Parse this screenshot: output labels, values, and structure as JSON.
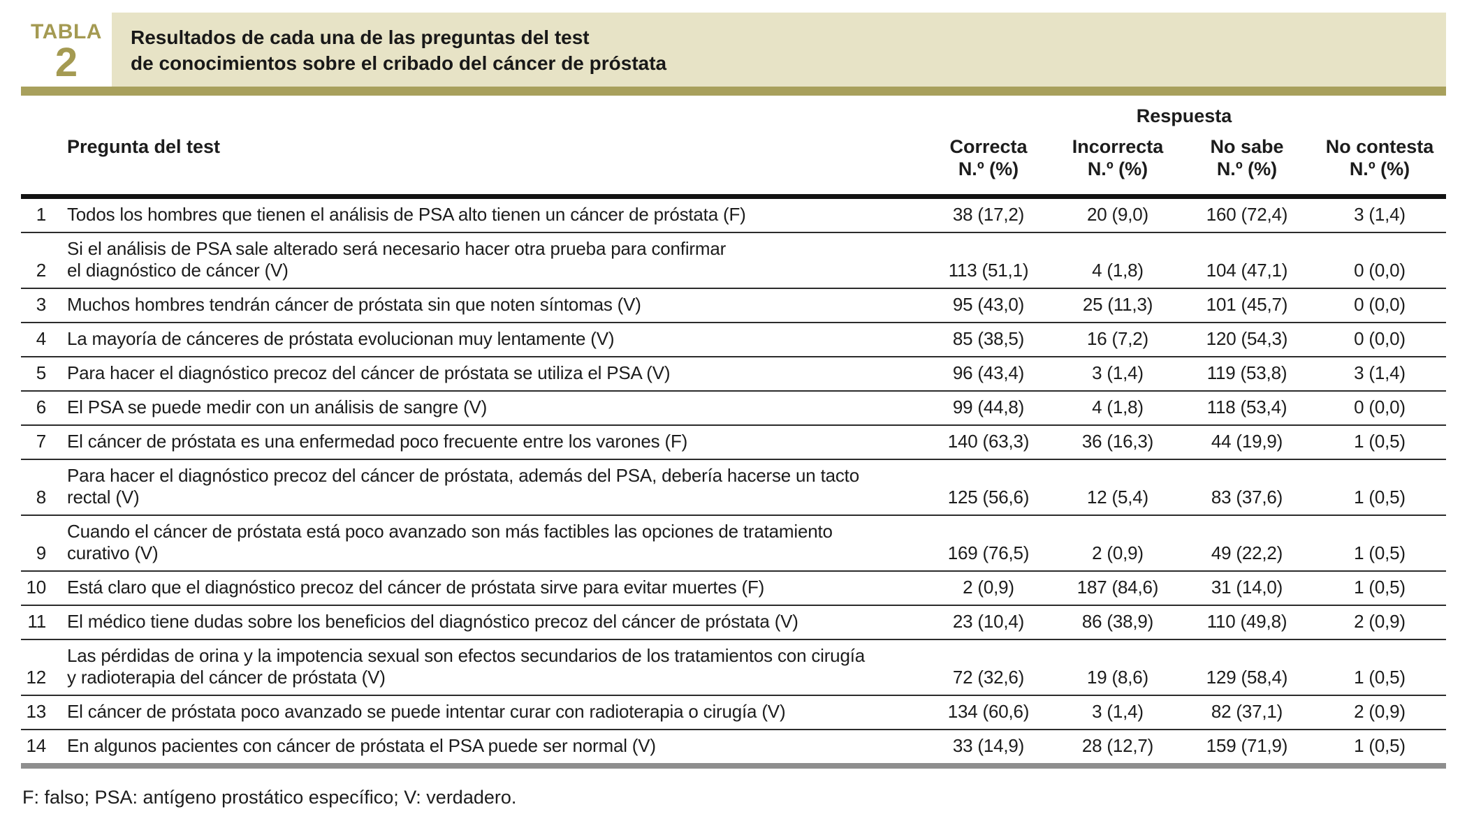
{
  "header": {
    "label": "TABLA",
    "number": "2",
    "title_line1": "Resultados de cada una de las preguntas del test",
    "title_line2": "de conocimientos sobre el cribado del cáncer de próstata"
  },
  "table": {
    "respuesta_header": "Respuesta",
    "question_header": "Pregunta del test",
    "columns": [
      {
        "label": "Correcta",
        "sub": "N.º (%)"
      },
      {
        "label": "Incorrecta",
        "sub": "N.º (%)"
      },
      {
        "label": "No sabe",
        "sub": "N.º (%)"
      },
      {
        "label": "No contesta",
        "sub": "N.º (%)"
      }
    ],
    "rows": [
      {
        "num": "1",
        "question": "Todos los hombres que tienen el análisis de PSA alto tienen un cáncer de próstata (F)",
        "correcta": "38 (17,2)",
        "incorrecta": "20 (9,0)",
        "no_sabe": "160 (72,4)",
        "no_contesta": "3 (1,4)"
      },
      {
        "num": "2",
        "question": "Si el análisis de PSA sale alterado será necesario hacer otra prueba para confirmar\nel diagnóstico de cáncer (V)",
        "correcta": "113 (51,1)",
        "incorrecta": "4 (1,8)",
        "no_sabe": "104 (47,1)",
        "no_contesta": "0 (0,0)"
      },
      {
        "num": "3",
        "question": "Muchos hombres tendrán cáncer de próstata sin que noten síntomas (V)",
        "correcta": "95 (43,0)",
        "incorrecta": "25 (11,3)",
        "no_sabe": "101 (45,7)",
        "no_contesta": "0 (0,0)"
      },
      {
        "num": "4",
        "question": "La mayoría de cánceres de próstata evolucionan muy lentamente (V)",
        "correcta": "85 (38,5)",
        "incorrecta": "16 (7,2)",
        "no_sabe": "120 (54,3)",
        "no_contesta": "0 (0,0)"
      },
      {
        "num": "5",
        "question": "Para hacer el diagnóstico precoz del cáncer de próstata se utiliza el PSA (V)",
        "correcta": "96 (43,4)",
        "incorrecta": "3 (1,4)",
        "no_sabe": "119 (53,8)",
        "no_contesta": "3 (1,4)"
      },
      {
        "num": "6",
        "question": "El PSA se puede medir con un análisis de sangre (V)",
        "correcta": "99 (44,8)",
        "incorrecta": "4 (1,8)",
        "no_sabe": "118 (53,4)",
        "no_contesta": "0 (0,0)"
      },
      {
        "num": "7",
        "question": "El cáncer de próstata es una enfermedad poco frecuente entre los varones (F)",
        "correcta": "140 (63,3)",
        "incorrecta": "36 (16,3)",
        "no_sabe": "44 (19,9)",
        "no_contesta": "1 (0,5)"
      },
      {
        "num": "8",
        "question": "Para hacer el diagnóstico precoz del cáncer de próstata, además del PSA, debería hacerse un tacto\nrectal (V)",
        "correcta": "125 (56,6)",
        "incorrecta": "12 (5,4)",
        "no_sabe": "83 (37,6)",
        "no_contesta": "1 (0,5)"
      },
      {
        "num": "9",
        "question": "Cuando el cáncer de próstata está poco avanzado son más factibles las opciones de tratamiento\ncurativo (V)",
        "correcta": "169 (76,5)",
        "incorrecta": "2 (0,9)",
        "no_sabe": "49 (22,2)",
        "no_contesta": "1 (0,5)"
      },
      {
        "num": "10",
        "question": "Está claro que el diagnóstico precoz del cáncer de próstata sirve para evitar muertes (F)",
        "correcta": "2 (0,9)",
        "incorrecta": "187 (84,6)",
        "no_sabe": "31 (14,0)",
        "no_contesta": "1 (0,5)"
      },
      {
        "num": "11",
        "question": "El médico tiene dudas sobre los beneficios del diagnóstico precoz del cáncer de próstata (V)",
        "correcta": "23 (10,4)",
        "incorrecta": "86 (38,9)",
        "no_sabe": "110 (49,8)",
        "no_contesta": "2 (0,9)"
      },
      {
        "num": "12",
        "question": "Las pérdidas de orina y la impotencia sexual son efectos secundarios de los tratamientos con cirugía\ny radioterapia del cáncer de próstata (V)",
        "correcta": "72 (32,6)",
        "incorrecta": "19 (8,6)",
        "no_sabe": "129 (58,4)",
        "no_contesta": "1 (0,5)"
      },
      {
        "num": "13",
        "question": "El cáncer de próstata poco avanzado se puede intentar curar con radioterapia o cirugía (V)",
        "correcta": "134 (60,6)",
        "incorrecta": "3 (1,4)",
        "no_sabe": "82 (37,1)",
        "no_contesta": "2 (0,9)"
      },
      {
        "num": "14",
        "question": "En algunos pacientes con cáncer de próstata el PSA puede ser normal (V)",
        "correcta": "33 (14,9)",
        "incorrecta": "28 (12,7)",
        "no_sabe": "159 (71,9)",
        "no_contesta": "1 (0,5)"
      }
    ]
  },
  "footnote": "F: falso; PSA: antígeno prostático específico; V: verdadero.",
  "colors": {
    "accent_olive": "#a8a05c",
    "header_beige": "#e7e3c6",
    "badge_text": "#a49a52",
    "footer_rule_gray": "#8e8e8e"
  }
}
